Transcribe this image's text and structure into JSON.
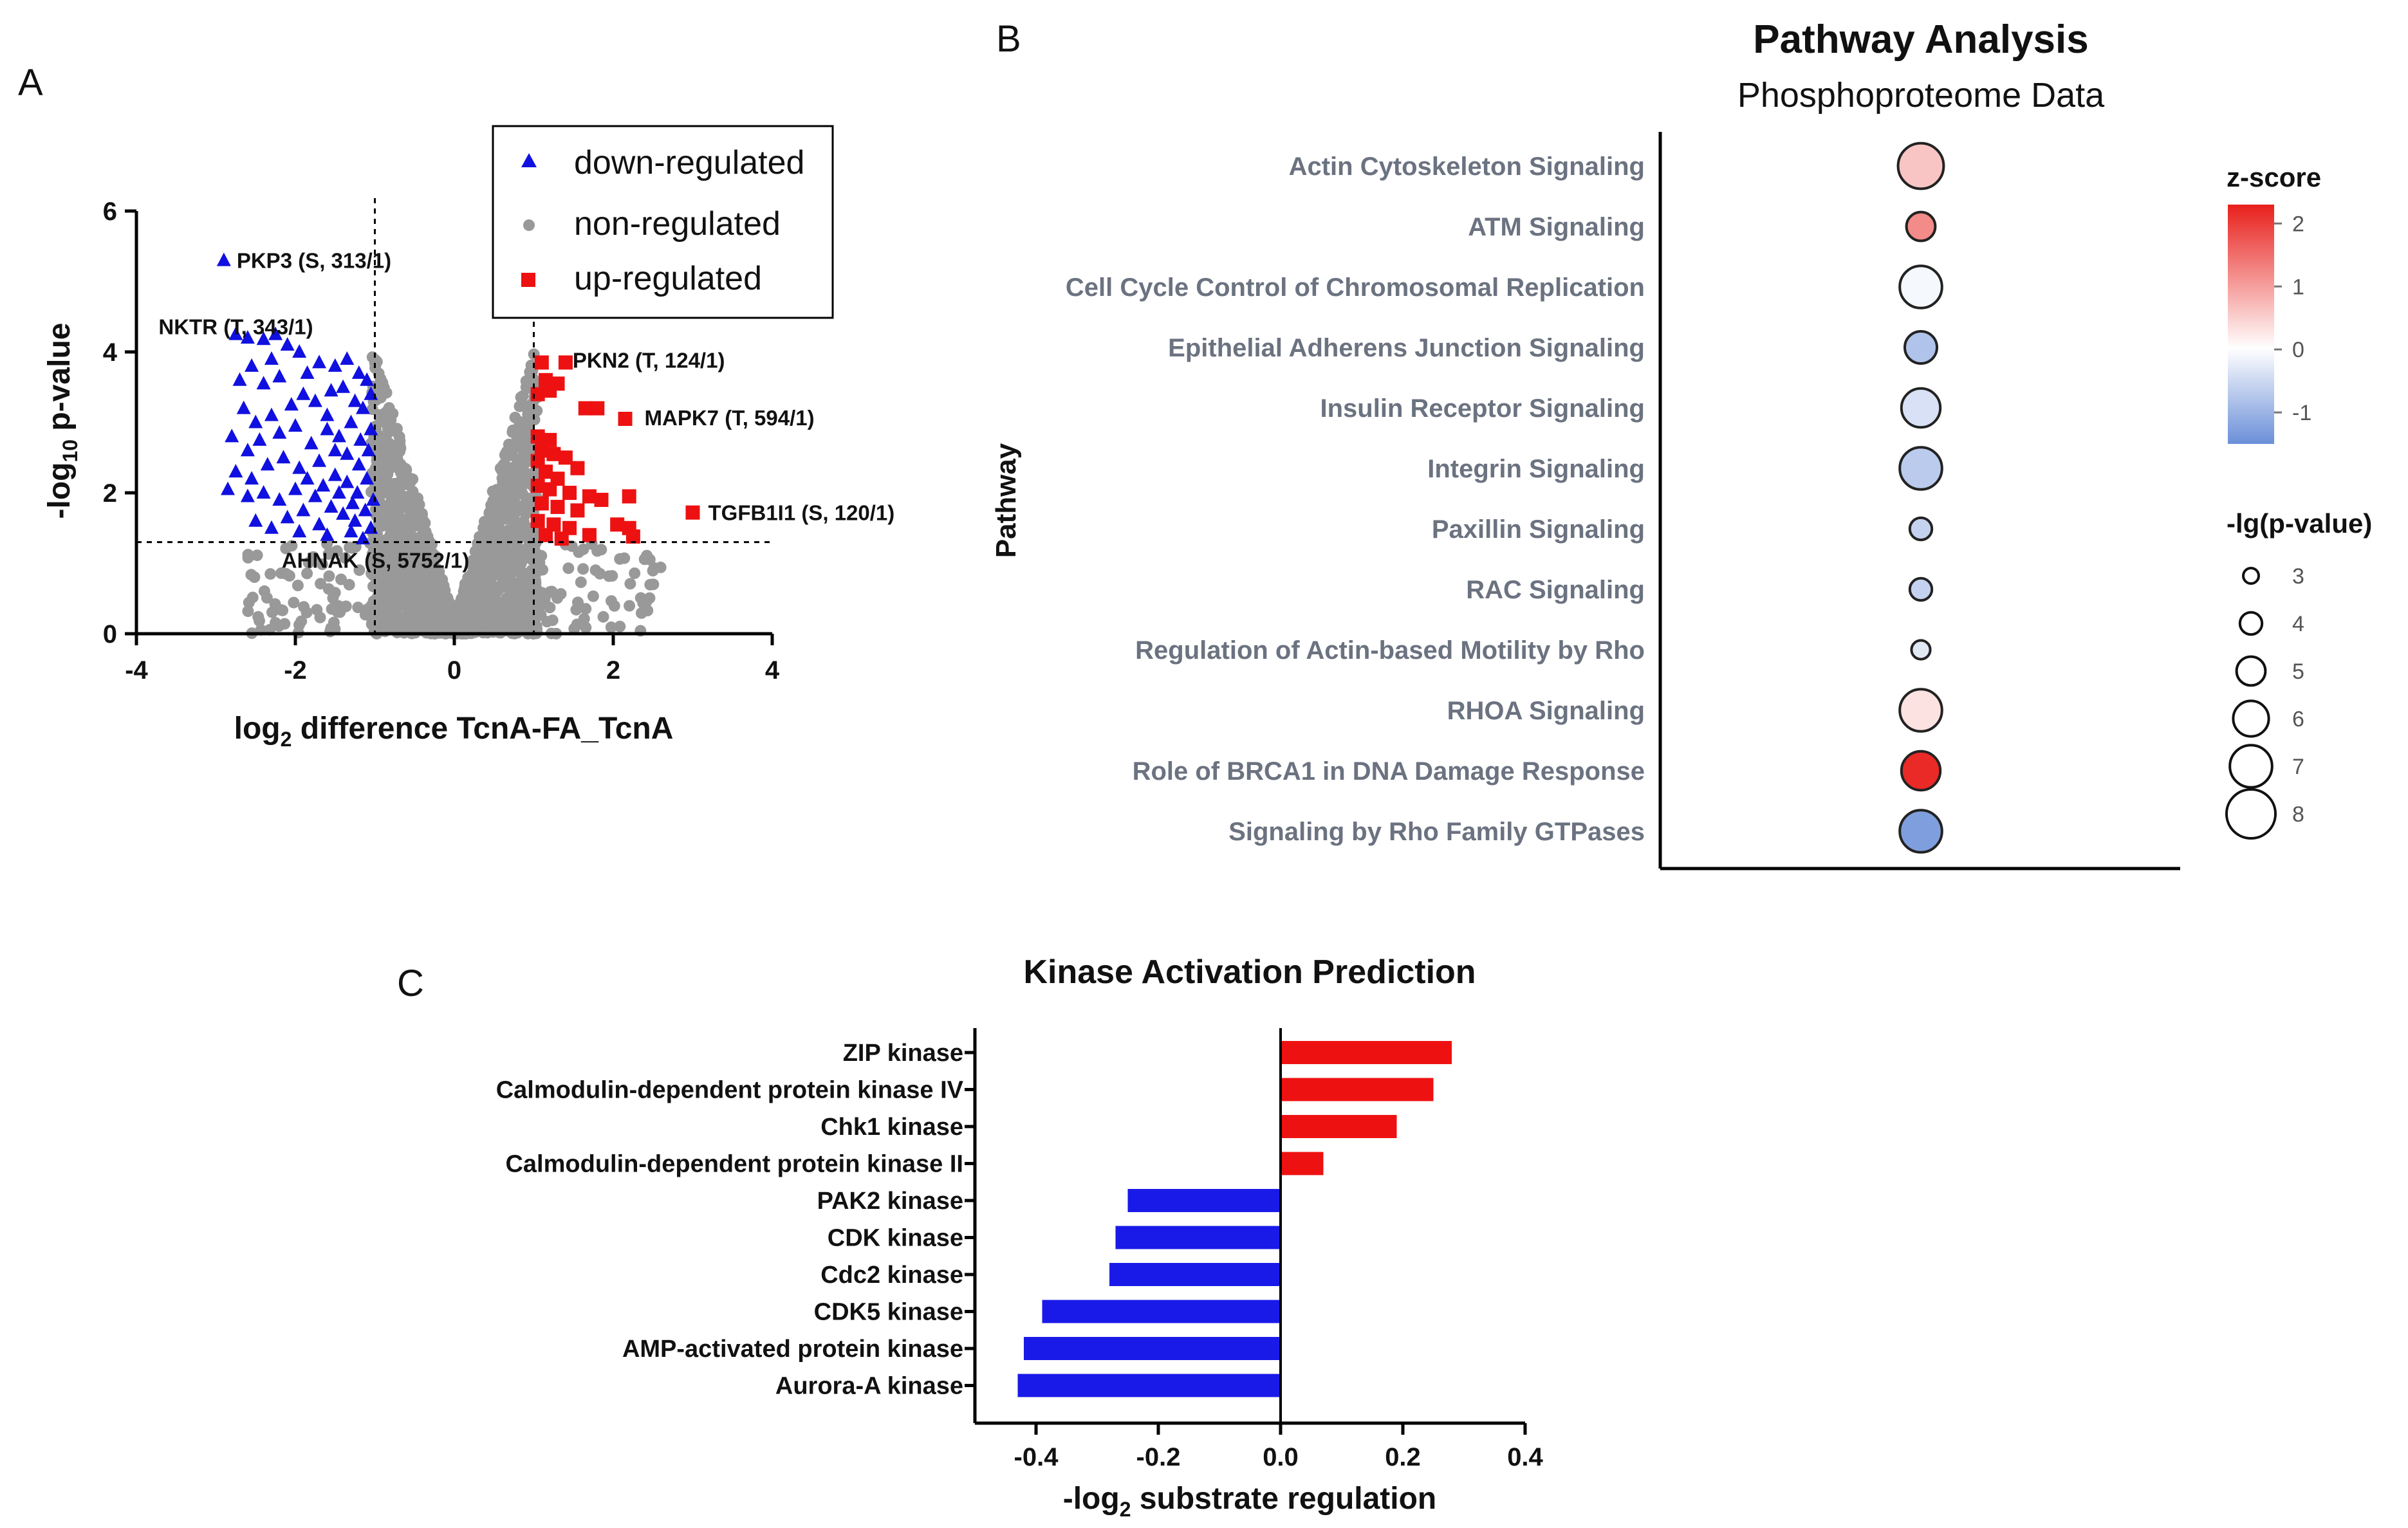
{
  "panels": {
    "a": "A",
    "b": "B",
    "c": "C"
  },
  "chart_data": [
    {
      "id": "A",
      "type": "scatter",
      "title": "",
      "xlabel": "log",
      "xlabel_sub": "2",
      "xlabel_rest": " difference TcnA-FA_TcnA",
      "ylabel": "-log",
      "ylabel_sub": "10",
      "ylabel_rest": " p-value",
      "xlim": [
        -4,
        4
      ],
      "ylim": [
        0,
        6
      ],
      "xticks": [
        "-4",
        "-2",
        "0",
        "2",
        "4"
      ],
      "yticks": [
        "0",
        "2",
        "4",
        "6"
      ],
      "cutoffs": {
        "x": [
          -1,
          1
        ],
        "y": 1.3
      },
      "legend": {
        "position": "top-right",
        "entries": [
          {
            "name": "down-regulated",
            "marker": "triangle",
            "color": "#1010e0"
          },
          {
            "name": "non-regulated",
            "marker": "circle",
            "color": "#999999"
          },
          {
            "name": "up-regulated",
            "marker": "square",
            "color": "#ee1111"
          }
        ]
      },
      "annotations": [
        {
          "text": "PKP3 (S, 313/1)",
          "x": -2.9,
          "y": 5.3
        },
        {
          "text": "NKTR (T, 343/1)",
          "x": -2.75,
          "y": 4.25
        },
        {
          "text": "PKN2 (T, 124/1)",
          "x": 1.1,
          "y": 3.85
        },
        {
          "text": "MAPK7 (T, 594/1)",
          "x": 2.15,
          "y": 3.05
        },
        {
          "text": "TGFB1I1 (S, 120/1)",
          "x": 3.0,
          "y": 1.72
        },
        {
          "text": "AHNAK (S, 5752/1)",
          "x": -1.2,
          "y": 1.3
        }
      ],
      "series": [
        {
          "name": "down-regulated",
          "points": [
            [
              -2.9,
              5.3
            ],
            [
              -2.75,
              4.25
            ],
            [
              -2.6,
              4.2
            ],
            [
              -2.4,
              4.18
            ],
            [
              -2.25,
              4.25
            ],
            [
              -2.3,
              3.9
            ],
            [
              -2.1,
              4.1
            ],
            [
              -1.95,
              4.0
            ],
            [
              -2.55,
              3.8
            ],
            [
              -2.7,
              3.6
            ],
            [
              -2.4,
              3.55
            ],
            [
              -2.2,
              3.65
            ],
            [
              -1.85,
              3.7
            ],
            [
              -1.7,
              3.85
            ],
            [
              -1.5,
              3.8
            ],
            [
              -1.35,
              3.9
            ],
            [
              -1.2,
              3.7
            ],
            [
              -1.1,
              3.6
            ],
            [
              -2.65,
              3.2
            ],
            [
              -2.5,
              3.0
            ],
            [
              -2.3,
              3.1
            ],
            [
              -2.05,
              3.25
            ],
            [
              -1.9,
              3.4
            ],
            [
              -1.75,
              3.3
            ],
            [
              -1.55,
              3.45
            ],
            [
              -1.4,
              3.5
            ],
            [
              -1.25,
              3.3
            ],
            [
              -1.15,
              3.2
            ],
            [
              -2.8,
              2.8
            ],
            [
              -2.6,
              2.6
            ],
            [
              -2.45,
              2.75
            ],
            [
              -2.2,
              2.85
            ],
            [
              -2.0,
              2.95
            ],
            [
              -1.8,
              2.7
            ],
            [
              -1.6,
              2.9
            ],
            [
              -1.45,
              2.8
            ],
            [
              -1.3,
              3.0
            ],
            [
              -1.05,
              2.9
            ],
            [
              -2.75,
              2.3
            ],
            [
              -2.55,
              2.2
            ],
            [
              -2.35,
              2.4
            ],
            [
              -2.15,
              2.5
            ],
            [
              -1.95,
              2.35
            ],
            [
              -1.7,
              2.45
            ],
            [
              -1.5,
              2.6
            ],
            [
              -1.35,
              2.55
            ],
            [
              -1.2,
              2.4
            ],
            [
              -1.08,
              2.6
            ],
            [
              -2.85,
              2.05
            ],
            [
              -2.6,
              1.95
            ],
            [
              -2.4,
              2.0
            ],
            [
              -2.2,
              1.9
            ],
            [
              -2.0,
              2.05
            ],
            [
              -1.85,
              2.2
            ],
            [
              -1.65,
              2.1
            ],
            [
              -1.5,
              2.25
            ],
            [
              -1.35,
              2.15
            ],
            [
              -1.22,
              2.0
            ],
            [
              -1.1,
              2.2
            ],
            [
              -2.5,
              1.6
            ],
            [
              -2.3,
              1.5
            ],
            [
              -2.1,
              1.65
            ],
            [
              -1.9,
              1.75
            ],
            [
              -1.7,
              1.55
            ],
            [
              -1.55,
              1.8
            ],
            [
              -1.4,
              1.7
            ],
            [
              -1.25,
              1.6
            ],
            [
              -1.12,
              1.75
            ],
            [
              -1.02,
              1.9
            ],
            [
              -1.95,
              1.45
            ],
            [
              -1.6,
              1.4
            ],
            [
              -1.3,
              1.45
            ],
            [
              -1.15,
              1.35
            ],
            [
              -1.05,
              1.5
            ],
            [
              -1.75,
              1.95
            ],
            [
              -1.45,
              2.0
            ],
            [
              -1.28,
              1.85
            ],
            [
              -1.6,
              3.1
            ],
            [
              -1.18,
              2.75
            ],
            [
              -1.05,
              3.4
            ]
          ]
        },
        {
          "name": "up-regulated",
          "points": [
            [
              1.1,
              3.85
            ],
            [
              1.4,
              3.85
            ],
            [
              1.15,
              3.6
            ],
            [
              1.3,
              3.55
            ],
            [
              1.65,
              3.2
            ],
            [
              1.8,
              3.2
            ],
            [
              2.15,
              3.05
            ],
            [
              3.0,
              1.72
            ],
            [
              1.05,
              3.4
            ],
            [
              1.2,
              3.45
            ],
            [
              1.1,
              2.6
            ],
            [
              1.25,
              2.55
            ],
            [
              1.05,
              2.45
            ],
            [
              1.4,
              2.5
            ],
            [
              1.15,
              2.3
            ],
            [
              1.3,
              2.2
            ],
            [
              1.55,
              2.35
            ],
            [
              1.05,
              2.1
            ],
            [
              1.2,
              2.05
            ],
            [
              1.45,
              2.0
            ],
            [
              1.7,
              1.95
            ],
            [
              1.85,
              1.9
            ],
            [
              2.2,
              1.95
            ],
            [
              1.1,
              1.85
            ],
            [
              1.3,
              1.8
            ],
            [
              1.55,
              1.75
            ],
            [
              1.05,
              1.6
            ],
            [
              1.25,
              1.55
            ],
            [
              1.45,
              1.5
            ],
            [
              2.05,
              1.55
            ],
            [
              2.2,
              1.5
            ],
            [
              1.15,
              1.4
            ],
            [
              1.35,
              1.35
            ],
            [
              1.7,
              1.4
            ],
            [
              2.25,
              1.38
            ],
            [
              1.05,
              2.8
            ],
            [
              1.2,
              2.75
            ]
          ]
        }
      ]
    },
    {
      "id": "B",
      "type": "scatter",
      "title": "Pathway Analysis",
      "subtitle": "Phosphoproteome Data",
      "ylabel": "Pathway",
      "color_legend": {
        "title": "z-score",
        "min": -1.5,
        "max": 2.3,
        "ticks": [
          "2",
          "1",
          "0",
          "-1"
        ],
        "tick_values": [
          2,
          1,
          0,
          -1
        ]
      },
      "size_legend": {
        "title": "-lg(p-value)",
        "ticks": [
          "3",
          "4",
          "5",
          "6",
          "7",
          "8"
        ],
        "values": [
          3,
          4,
          5,
          6,
          7,
          8
        ]
      },
      "categories": [
        "Actin Cytoskeleton Signaling",
        "ATM Signaling",
        "Cell Cycle Control of Chromosomal Replication",
        "Epithelial Adherens Junction Signaling",
        "Insulin Receptor Signaling",
        "Integrin Signaling",
        "Paxillin Signaling",
        "RAC Signaling",
        "Regulation of Actin-based Motility by Rho",
        "RHOA Signaling",
        "Role of BRCA1 in DNA Damage Response",
        "Signaling by Rho Family GTPases"
      ],
      "z_scores": [
        0.6,
        1.2,
        -0.1,
        -0.8,
        -0.4,
        -0.7,
        -0.6,
        -0.6,
        -0.3,
        0.3,
        2.2,
        -1.3
      ],
      "neg_log_p": [
        7.5,
        5.0,
        7.0,
        5.5,
        6.5,
        7.0,
        4.0,
        4.0,
        3.5,
        7.0,
        6.5,
        7.0
      ]
    },
    {
      "id": "C",
      "type": "bar",
      "orientation": "horizontal",
      "title": "Kinase Activation Prediction",
      "xlabel": "-log",
      "xlabel_sub": "2",
      "xlabel_rest": " substrate regulation",
      "xlim": [
        -0.5,
        0.4
      ],
      "xticks": [
        "-0.4",
        "-0.2",
        "0.0",
        "0.2",
        "0.4"
      ],
      "categories": [
        "ZIP kinase",
        "Calmodulin-dependent protein kinase IV",
        "Chk1 kinase",
        "Calmodulin-dependent protein kinase II",
        "PAK2 kinase",
        "CDK kinase",
        "Cdc2 kinase",
        "CDK5 kinase",
        "AMP-activated protein kinase",
        "Aurora-A kinase"
      ],
      "values": [
        0.28,
        0.25,
        0.19,
        0.07,
        -0.25,
        -0.27,
        -0.28,
        -0.39,
        -0.42,
        -0.43
      ],
      "colors": {
        "positive": "#ee1111",
        "negative": "#1a1ae8"
      }
    }
  ]
}
